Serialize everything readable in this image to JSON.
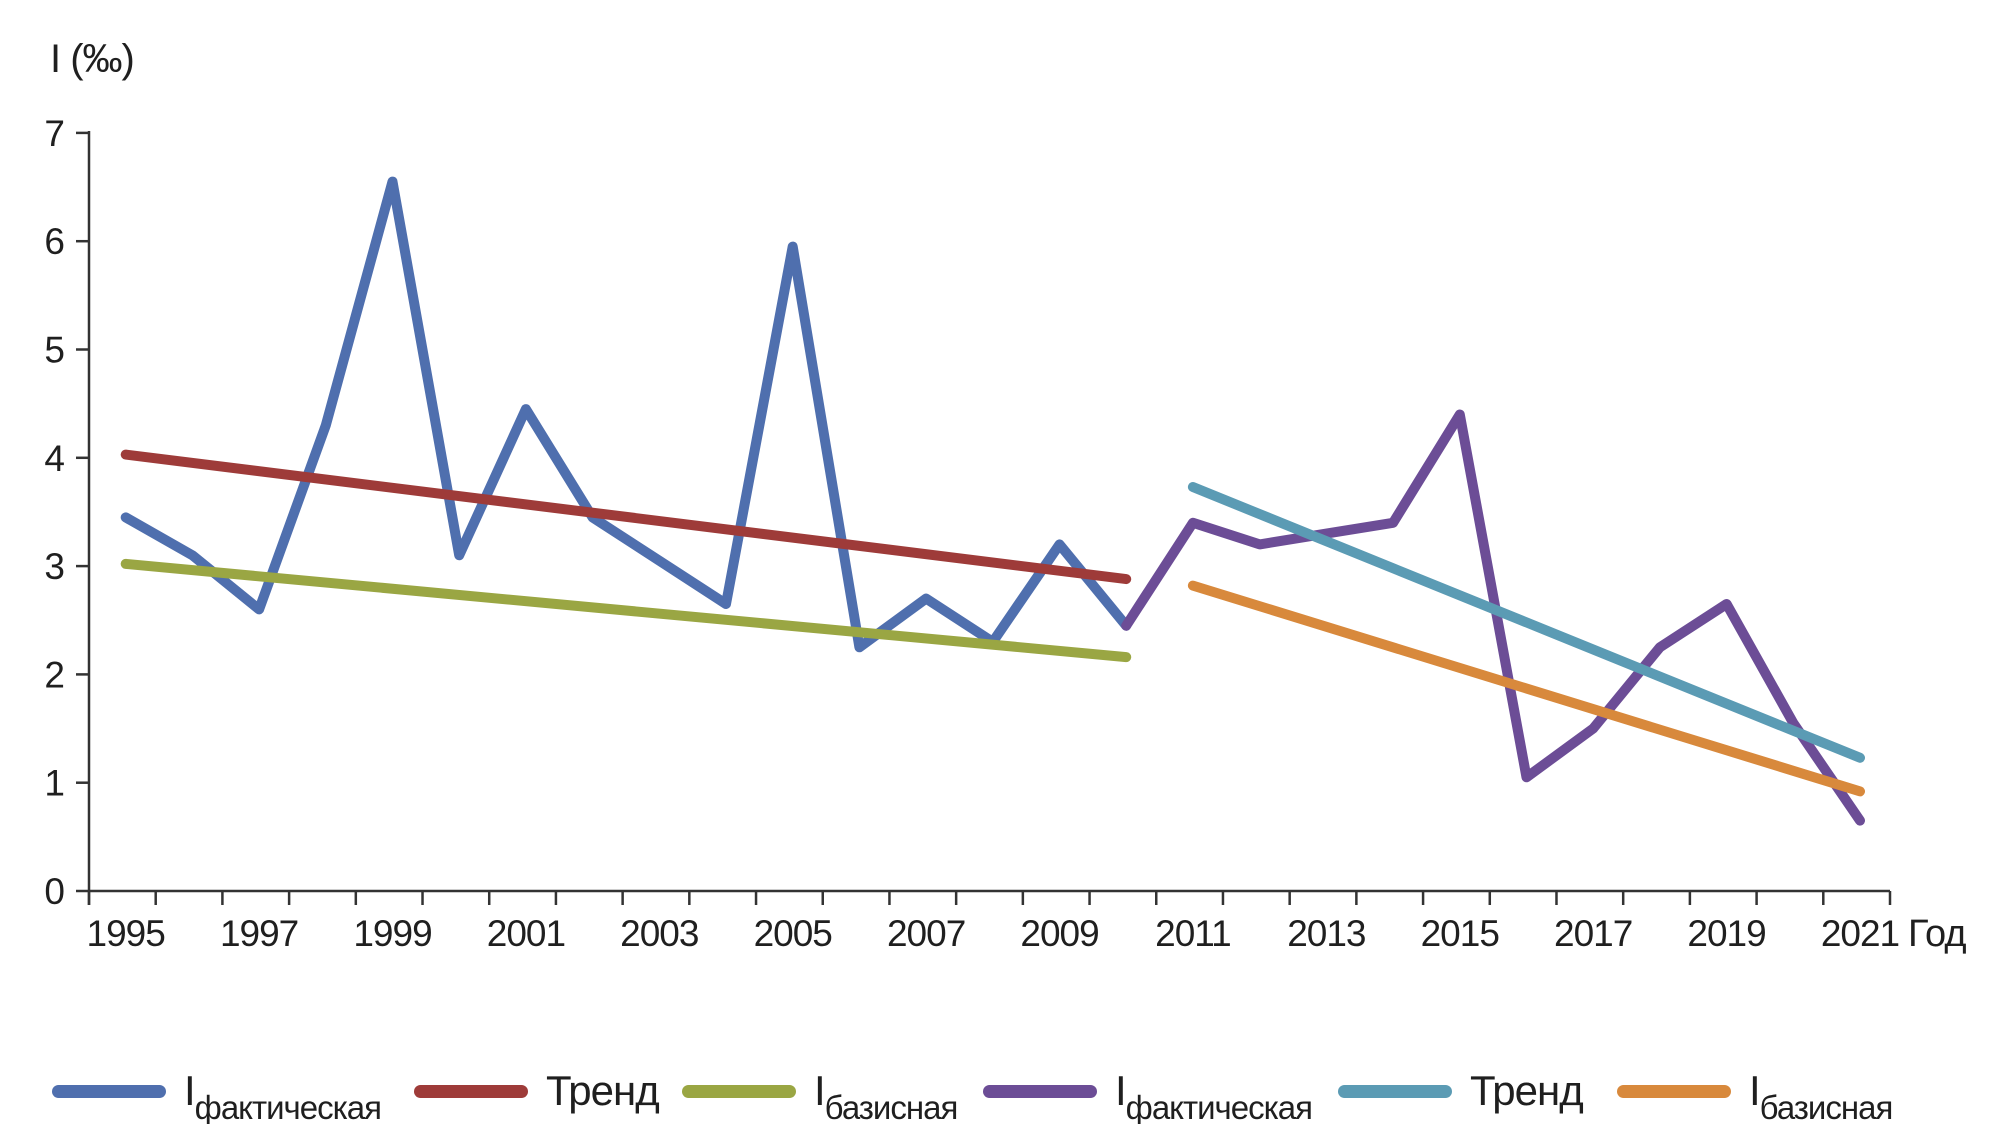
{
  "title": "I (‰)",
  "x_axis_label": "Год",
  "axis_color": "#333333",
  "text_color": "#1f1f1f",
  "chart_data": {
    "type": "line",
    "title": "I (‰)",
    "xlabel": "Год",
    "ylabel": "I (‰)",
    "ylim": [
      0,
      7
    ],
    "y_ticks": [
      0,
      1,
      2,
      3,
      4,
      5,
      6,
      7
    ],
    "x_range": [
      1995,
      2021
    ],
    "x_tick_labels": [
      1995,
      1997,
      1999,
      2001,
      2003,
      2005,
      2007,
      2009,
      2011,
      2013,
      2015,
      2017,
      2019,
      2021
    ],
    "grid": false,
    "legend_position": "bottom",
    "series": [
      {
        "name": "Iфактическая (1995–2010)",
        "color": "#4F6FAE",
        "x": [
          1995,
          1996,
          1997,
          1998,
          1999,
          2000,
          2001,
          2002,
          2003,
          2004,
          2005,
          2006,
          2007,
          2008,
          2009,
          2010
        ],
        "values": [
          3.45,
          3.1,
          2.6,
          4.3,
          6.55,
          3.1,
          4.45,
          3.45,
          3.05,
          2.65,
          5.95,
          2.25,
          2.7,
          2.3,
          3.2,
          2.45
        ]
      },
      {
        "name": "Тренд (1995–2010)",
        "color": "#9E3B39",
        "x": [
          1995,
          2010
        ],
        "values": [
          4.03,
          2.88
        ]
      },
      {
        "name": "Iбазисная (1995–2010)",
        "color": "#9AA643",
        "x": [
          1995,
          2010
        ],
        "values": [
          3.02,
          2.16
        ]
      },
      {
        "name": "Iфактическая (2010–2021)",
        "color": "#6C4D96",
        "x": [
          2010,
          2011,
          2012,
          2013,
          2014,
          2015,
          2016,
          2017,
          2018,
          2019,
          2020,
          2021
        ],
        "values": [
          2.45,
          3.4,
          3.2,
          3.3,
          3.4,
          4.4,
          1.05,
          1.5,
          2.25,
          2.65,
          1.55,
          0.65
        ]
      },
      {
        "name": "Тренд (2011–2021)",
        "color": "#5B9BB4",
        "x": [
          2011,
          2021
        ],
        "values": [
          3.73,
          1.23
        ]
      },
      {
        "name": "Iбазисная (2011–2021)",
        "color": "#D8893C",
        "x": [
          2011,
          2021
        ],
        "values": [
          2.82,
          0.92
        ]
      }
    ],
    "legend": [
      {
        "main": "I",
        "sub": "фактическая",
        "color": "#4F6FAE"
      },
      {
        "main": "Тренд",
        "sub": "",
        "color": "#9E3B39"
      },
      {
        "main": "I",
        "sub": "базисная",
        "color": "#9AA643"
      },
      {
        "main": "I",
        "sub": "фактическая",
        "color": "#6C4D96"
      },
      {
        "main": "Тренд",
        "sub": "",
        "color": "#5B9BB4"
      },
      {
        "main": "I",
        "sub": "базисная",
        "color": "#D8893C"
      }
    ]
  },
  "layout_hints": {
    "line_width": 10,
    "legend_swatch_width": 114,
    "legend_swatch_height": 13
  }
}
